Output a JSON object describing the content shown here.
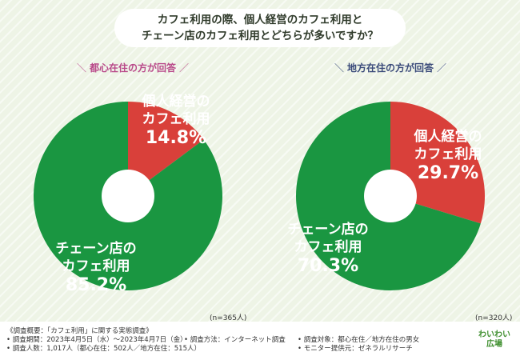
{
  "title": {
    "line1": "カフェ利用の際、個人経営のカフェ利用と",
    "line2": "チェーン店のカフェ利用とどちらが多いですか？"
  },
  "colors": {
    "red": "#d9403a",
    "green": "#1a9641",
    "background": "#eef4e6"
  },
  "chart_data": [
    {
      "type": "pie",
      "title": "都心在住の方が回答",
      "categories": [
        "個人経営のカフェ利用",
        "チェーン店のカフェ利用"
      ],
      "values": [
        14.8,
        85.2
      ],
      "colors": [
        "#d9403a",
        "#1a9641"
      ],
      "labels": {
        "red_line1": "個人経営の",
        "red_line2": "カフェ利用",
        "red_pct": "14.8%",
        "green_line1": "チェーン店の",
        "green_line2": "カフェ利用",
        "green_pct": "85.2%"
      },
      "n": "(n=365人)"
    },
    {
      "type": "pie",
      "title": "地方在住の方が回答",
      "categories": [
        "個人経営のカフェ利用",
        "チェーン店のカフェ利用"
      ],
      "values": [
        29.7,
        70.3
      ],
      "colors": [
        "#d9403a",
        "#1a9641"
      ],
      "labels": {
        "red_line1": "個人経営の",
        "red_line2": "カフェ利用",
        "red_pct": "29.7%",
        "green_line1": "チェーン店の",
        "green_line2": "カフェ利用",
        "green_pct": "70.3%"
      },
      "n": "(n=320人)"
    }
  ],
  "slashes": {
    "open": "＼",
    "close": "／"
  },
  "footer": {
    "summary": "《調査概要：「カフェ利用」に関する実態調査》",
    "period": "• 調査期間：2023年4月5日（水）～2023年4月7日（金）",
    "method": "• 調査方法：インターネット調査",
    "target": "• 調査対象：都心在住／地方在住の男女",
    "count": "• 調査人数：1,017人（都心在住：502人／地方在住：515人）",
    "monitor": "• モニター提供元：ゼネラルリサーチ"
  },
  "logo": {
    "line1": "わいわい",
    "line2": "広場"
  }
}
